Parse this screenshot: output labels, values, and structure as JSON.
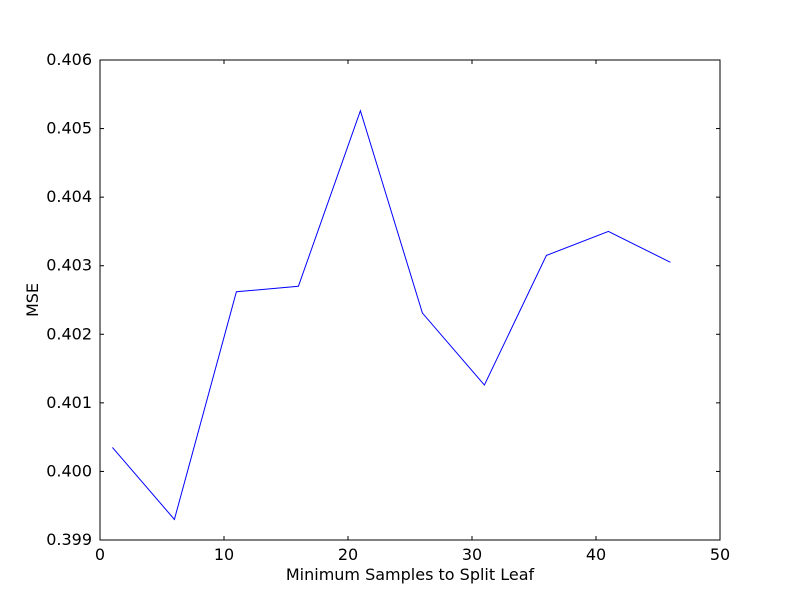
{
  "chart_data": {
    "type": "line",
    "title": "",
    "xlabel": "Minimum Samples to Split Leaf",
    "ylabel": "MSE",
    "xlim": [
      0,
      50
    ],
    "ylim": [
      0.399,
      0.406
    ],
    "grid": false,
    "xticks": [
      0,
      10,
      20,
      30,
      40,
      50
    ],
    "xtick_labels": [
      "0",
      "10",
      "20",
      "30",
      "40",
      "50"
    ],
    "yticks": [
      0.399,
      0.4,
      0.401,
      0.402,
      0.403,
      0.404,
      0.405,
      0.406
    ],
    "ytick_labels": [
      "0.399",
      "0.400",
      "0.401",
      "0.402",
      "0.403",
      "0.404",
      "0.405",
      "0.406"
    ],
    "series": [
      {
        "color": "#0000ff",
        "x": [
          1,
          6,
          11,
          16,
          21,
          26,
          31,
          36,
          41,
          46
        ],
        "y": [
          0.40035,
          0.3993,
          0.40262,
          0.4027,
          0.40526,
          0.40231,
          0.40126,
          0.40315,
          0.4035,
          0.40305
        ]
      }
    ]
  }
}
